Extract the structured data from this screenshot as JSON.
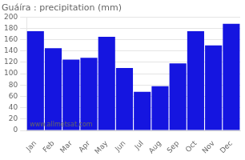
{
  "chart_data": {
    "type": "bar",
    "title": "Guáíra : precipitation (mm)",
    "categories": [
      "Jan",
      "Feb",
      "Mar",
      "Apr",
      "May",
      "Jun",
      "Jul",
      "Aug",
      "Sep",
      "Oct",
      "Nov",
      "Dec"
    ],
    "values": [
      175,
      145,
      125,
      128,
      165,
      110,
      68,
      78,
      118,
      175,
      150,
      188
    ],
    "color": "#1515e0",
    "ylim": [
      0,
      200
    ],
    "yticks": [
      0,
      20,
      40,
      60,
      80,
      100,
      120,
      140,
      160,
      180,
      200
    ],
    "grid": true,
    "annotations": [
      "www.allmetsat.com"
    ]
  }
}
